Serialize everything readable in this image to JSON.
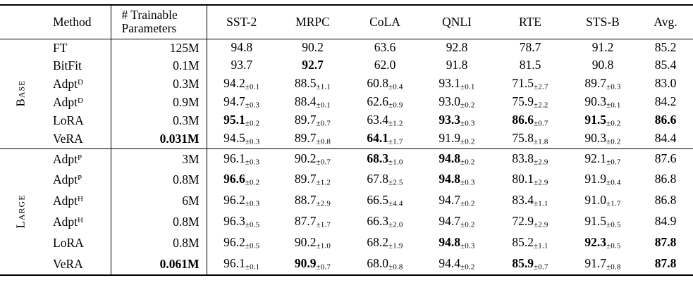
{
  "table": {
    "header": {
      "method": "Method",
      "params_line1": "# Trainable",
      "params_line2": "Parameters",
      "tasks": [
        "SST-2",
        "MRPC",
        "CoLA",
        "QNLI",
        "RTE",
        "STS-B",
        "Avg."
      ]
    },
    "groups": [
      {
        "label": "Base",
        "rows": [
          {
            "method": "FT",
            "sup": "",
            "params": "125M",
            "params_bold": false,
            "cells": [
              {
                "v": "94.8",
                "sub": "",
                "b": false
              },
              {
                "v": "90.2",
                "sub": "",
                "b": false
              },
              {
                "v": "63.6",
                "sub": "",
                "b": false
              },
              {
                "v": "92.8",
                "sub": "",
                "b": false
              },
              {
                "v": "78.7",
                "sub": "",
                "b": false
              },
              {
                "v": "91.2",
                "sub": "",
                "b": false
              },
              {
                "v": "85.2",
                "sub": "",
                "b": false
              }
            ]
          },
          {
            "method": "BitFit",
            "sup": "",
            "params": "0.1M",
            "params_bold": false,
            "cells": [
              {
                "v": "93.7",
                "sub": "",
                "b": false
              },
              {
                "v": "92.7",
                "sub": "",
                "b": true
              },
              {
                "v": "62.0",
                "sub": "",
                "b": false
              },
              {
                "v": "91.8",
                "sub": "",
                "b": false
              },
              {
                "v": "81.5",
                "sub": "",
                "b": false
              },
              {
                "v": "90.8",
                "sub": "",
                "b": false
              },
              {
                "v": "85.4",
                "sub": "",
                "b": false
              }
            ]
          },
          {
            "method": "Adpt",
            "sup": "D",
            "params": "0.3M",
            "params_bold": false,
            "cells": [
              {
                "v": "94.2",
                "sub": "±0.1",
                "b": false
              },
              {
                "v": "88.5",
                "sub": "±1.1",
                "b": false
              },
              {
                "v": "60.8",
                "sub": "±0.4",
                "b": false
              },
              {
                "v": "93.1",
                "sub": "±0.1",
                "b": false
              },
              {
                "v": "71.5",
                "sub": "±2.7",
                "b": false
              },
              {
                "v": "89.7",
                "sub": "±0.3",
                "b": false
              },
              {
                "v": "83.0",
                "sub": "",
                "b": false
              }
            ]
          },
          {
            "method": "Adpt",
            "sup": "D",
            "params": "0.9M",
            "params_bold": false,
            "cells": [
              {
                "v": "94.7",
                "sub": "±0.3",
                "b": false
              },
              {
                "v": "88.4",
                "sub": "±0.1",
                "b": false
              },
              {
                "v": "62.6",
                "sub": "±0.9",
                "b": false
              },
              {
                "v": "93.0",
                "sub": "±0.2",
                "b": false
              },
              {
                "v": "75.9",
                "sub": "±2.2",
                "b": false
              },
              {
                "v": "90.3",
                "sub": "±0.1",
                "b": false
              },
              {
                "v": "84.2",
                "sub": "",
                "b": false
              }
            ]
          },
          {
            "method": "LoRA",
            "sup": "",
            "params": "0.3M",
            "params_bold": false,
            "cells": [
              {
                "v": "95.1",
                "sub": "±0.2",
                "b": true
              },
              {
                "v": "89.7",
                "sub": "±0.7",
                "b": false
              },
              {
                "v": "63.4",
                "sub": "±1.2",
                "b": false
              },
              {
                "v": "93.3",
                "sub": "±0.3",
                "b": true
              },
              {
                "v": "86.6",
                "sub": "±0.7",
                "b": true
              },
              {
                "v": "91.5",
                "sub": "±0.2",
                "b": true
              },
              {
                "v": "86.6",
                "sub": "",
                "b": true
              }
            ]
          },
          {
            "method": "VeRA",
            "sup": "",
            "params": "0.031M",
            "params_bold": true,
            "cells": [
              {
                "v": "94.5",
                "sub": "±0.3",
                "b": false
              },
              {
                "v": "89.7",
                "sub": "±0.8",
                "b": false
              },
              {
                "v": "64.1",
                "sub": "±1.7",
                "b": true
              },
              {
                "v": "91.9",
                "sub": "±0.2",
                "b": false
              },
              {
                "v": "75.8",
                "sub": "±1.8",
                "b": false
              },
              {
                "v": "90.3",
                "sub": "±0.2",
                "b": false
              },
              {
                "v": "84.4",
                "sub": "",
                "b": false
              }
            ]
          }
        ]
      },
      {
        "label": "Large",
        "rows": [
          {
            "method": "Adpt",
            "sup": "P",
            "params": "3M",
            "params_bold": false,
            "cells": [
              {
                "v": "96.1",
                "sub": "±0.3",
                "b": false
              },
              {
                "v": "90.2",
                "sub": "±0.7",
                "b": false
              },
              {
                "v": "68.3",
                "sub": "±1.0",
                "b": true
              },
              {
                "v": "94.8",
                "sub": "±0.2",
                "b": true
              },
              {
                "v": "83.8",
                "sub": "±2.9",
                "b": false
              },
              {
                "v": "92.1",
                "sub": "±0.7",
                "b": false
              },
              {
                "v": "87.6",
                "sub": "",
                "b": false
              }
            ]
          },
          {
            "method": "Adpt",
            "sup": "P",
            "params": "0.8M",
            "params_bold": false,
            "cells": [
              {
                "v": "96.6",
                "sub": "±0.2",
                "b": true
              },
              {
                "v": "89.7",
                "sub": "±1.2",
                "b": false
              },
              {
                "v": "67.8",
                "sub": "±2.5",
                "b": false
              },
              {
                "v": "94.8",
                "sub": "±0.3",
                "b": true
              },
              {
                "v": "80.1",
                "sub": "±2.9",
                "b": false
              },
              {
                "v": "91.9",
                "sub": "±0.4",
                "b": false
              },
              {
                "v": "86.8",
                "sub": "",
                "b": false
              }
            ]
          },
          {
            "method": "Adpt",
            "sup": "H",
            "params": "6M",
            "params_bold": false,
            "cells": [
              {
                "v": "96.2",
                "sub": "±0.3",
                "b": false
              },
              {
                "v": "88.7",
                "sub": "±2.9",
                "b": false
              },
              {
                "v": "66.5",
                "sub": "±4.4",
                "b": false
              },
              {
                "v": "94.7",
                "sub": "±0.2",
                "b": false
              },
              {
                "v": "83.4",
                "sub": "±1.1",
                "b": false
              },
              {
                "v": "91.0",
                "sub": "±1.7",
                "b": false
              },
              {
                "v": "86.8",
                "sub": "",
                "b": false
              }
            ]
          },
          {
            "method": "Adpt",
            "sup": "H",
            "params": "0.8M",
            "params_bold": false,
            "cells": [
              {
                "v": "96.3",
                "sub": "±0.5",
                "b": false
              },
              {
                "v": "87.7",
                "sub": "±1.7",
                "b": false
              },
              {
                "v": "66.3",
                "sub": "±2.0",
                "b": false
              },
              {
                "v": "94.7",
                "sub": "±0.2",
                "b": false
              },
              {
                "v": "72.9",
                "sub": "±2.9",
                "b": false
              },
              {
                "v": "91.5",
                "sub": "±0.5",
                "b": false
              },
              {
                "v": "84.9",
                "sub": "",
                "b": false
              }
            ]
          },
          {
            "method": "LoRA",
            "sup": "",
            "params": "0.8M",
            "params_bold": false,
            "cells": [
              {
                "v": "96.2",
                "sub": "±0.5",
                "b": false
              },
              {
                "v": "90.2",
                "sub": "±1.0",
                "b": false
              },
              {
                "v": "68.2",
                "sub": "±1.9",
                "b": false
              },
              {
                "v": "94.8",
                "sub": "±0.3",
                "b": true
              },
              {
                "v": "85.2",
                "sub": "±1.1",
                "b": false
              },
              {
                "v": "92.3",
                "sub": "±0.5",
                "b": true
              },
              {
                "v": "87.8",
                "sub": "",
                "b": true
              }
            ]
          },
          {
            "method": "VeRA",
            "sup": "",
            "params": "0.061M",
            "params_bold": true,
            "cells": [
              {
                "v": "96.1",
                "sub": "±0.1",
                "b": false
              },
              {
                "v": "90.9",
                "sub": "±0.7",
                "b": true
              },
              {
                "v": "68.0",
                "sub": "±0.8",
                "b": false
              },
              {
                "v": "94.4",
                "sub": "±0.2",
                "b": false
              },
              {
                "v": "85.9",
                "sub": "±0.7",
                "b": true
              },
              {
                "v": "91.7",
                "sub": "±0.8",
                "b": false
              },
              {
                "v": "87.8",
                "sub": "",
                "b": true
              }
            ]
          }
        ]
      }
    ]
  }
}
